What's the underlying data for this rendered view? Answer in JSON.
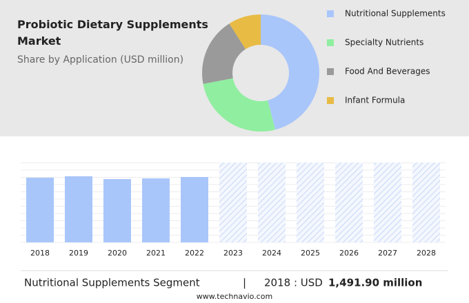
{
  "chart_data": [
    {
      "type": "pie",
      "title": "Probiotic Dietary Supplements Market",
      "subtitle": "Share by Application (USD million)",
      "categories": [
        "Nutritional Supplements",
        "Specialty Nutrients",
        "Food And Beverages",
        "Infant Formula"
      ],
      "values": [
        46,
        26,
        19,
        9
      ],
      "colors": [
        "#a9c6fa",
        "#90eea0",
        "#9a9a9a",
        "#e8bb45"
      ]
    },
    {
      "type": "bar",
      "categories": [
        "2018",
        "2019",
        "2020",
        "2021",
        "2022",
        "2023",
        "2024",
        "2025",
        "2026",
        "2027",
        "2028"
      ],
      "values": [
        1491.9,
        1524,
        1460,
        1476,
        1508,
        null,
        null,
        null,
        null,
        null,
        null
      ],
      "color": "#a9c6fa"
    }
  ],
  "footer": {
    "segment": "Nutritional Supplements Segment",
    "separator": "|",
    "year_label": "2018 : USD",
    "highlight": "1,491.90 million",
    "source": "www.technavio.com"
  }
}
